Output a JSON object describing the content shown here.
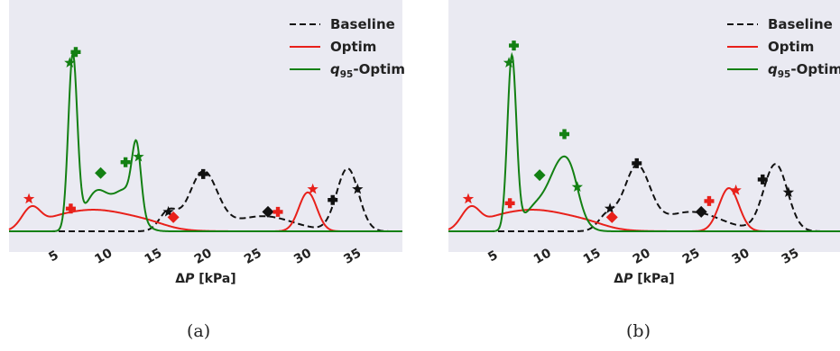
{
  "figure": {
    "captions": [
      "(a)",
      "(b)"
    ]
  },
  "colors": {
    "baseline": "#111111",
    "optim": "#e8201a",
    "q95": "#138013",
    "panel_bg": "#eaeaf2"
  },
  "chart_data": [
    {
      "type": "line",
      "xlabel": "ΔP [kPa]",
      "xticks": [
        5,
        10,
        15,
        20,
        25,
        30,
        35
      ],
      "xlim": [
        0.5,
        40
      ],
      "ylim": [
        0,
        1.0
      ],
      "grid": false,
      "legend": "top-right",
      "series": [
        {
          "name": "Baseline",
          "key": "baseline",
          "style": "dashed",
          "peaks": [
            [
              16.5,
              0.09,
              0.9
            ],
            [
              20.0,
              0.27,
              1.4
            ],
            [
              26.0,
              0.07,
              3.0
            ],
            [
              34.5,
              0.29,
              1.1
            ]
          ],
          "markers": [
            {
              "symbol": "star",
              "x": 16.5,
              "y": 0.09
            },
            {
              "symbol": "plus",
              "x": 20.0,
              "y": 0.265
            },
            {
              "symbol": "diamond",
              "x": 26.5,
              "y": 0.09
            },
            {
              "symbol": "plus",
              "x": 33.0,
              "y": 0.145
            },
            {
              "symbol": "star",
              "x": 35.5,
              "y": 0.195
            }
          ]
        },
        {
          "name": "Optim",
          "key": "optim",
          "style": "solid",
          "base": 0.06,
          "peaks": [
            [
              2.8,
              0.11,
              1.0
            ],
            [
              9.0,
              0.04,
              3.0
            ],
            [
              30.5,
              0.18,
              0.9
            ]
          ],
          "markers": [
            {
              "symbol": "star",
              "x": 2.5,
              "y": 0.15
            },
            {
              "symbol": "plus",
              "x": 6.7,
              "y": 0.105
            },
            {
              "symbol": "diamond",
              "x": 17.0,
              "y": 0.065
            },
            {
              "symbol": "plus",
              "x": 27.5,
              "y": 0.09
            },
            {
              "symbol": "star",
              "x": 31.0,
              "y": 0.195
            }
          ]
        },
        {
          "name": "q95-Optim",
          "key": "q95",
          "style": "solid",
          "peaks": [
            [
              6.9,
              0.8,
              0.45
            ],
            [
              9.3,
              0.18,
              1.2
            ],
            [
              12.2,
              0.18,
              1.2
            ],
            [
              13.3,
              0.3,
              0.45
            ]
          ],
          "markers": [
            {
              "symbol": "star",
              "x": 6.6,
              "y": 0.78
            },
            {
              "symbol": "plus",
              "x": 7.2,
              "y": 0.83
            },
            {
              "symbol": "diamond",
              "x": 9.7,
              "y": 0.27
            },
            {
              "symbol": "plus",
              "x": 12.2,
              "y": 0.32
            },
            {
              "symbol": "star",
              "x": 13.5,
              "y": 0.345
            }
          ]
        }
      ]
    },
    {
      "type": "line",
      "xlabel": "ΔP [kPa]",
      "xticks": [
        5,
        10,
        15,
        20,
        25,
        30,
        35
      ],
      "xlim": [
        0.5,
        40
      ],
      "ylim": [
        0,
        1.0
      ],
      "grid": false,
      "legend": "top-right",
      "series": [
        {
          "name": "Baseline",
          "key": "baseline",
          "style": "dashed",
          "peaks": [
            [
              16.5,
              0.07,
              0.9
            ],
            [
              19.5,
              0.29,
              1.3
            ],
            [
              25.0,
              0.09,
              3.0
            ],
            [
              33.5,
              0.31,
              1.2
            ]
          ],
          "markers": [
            {
              "symbol": "star",
              "x": 16.8,
              "y": 0.105
            },
            {
              "symbol": "plus",
              "x": 19.5,
              "y": 0.315
            },
            {
              "symbol": "diamond",
              "x": 26.0,
              "y": 0.09
            },
            {
              "symbol": "plus",
              "x": 32.2,
              "y": 0.24
            },
            {
              "symbol": "star",
              "x": 34.8,
              "y": 0.18
            }
          ]
        },
        {
          "name": "Optim",
          "key": "optim",
          "style": "solid",
          "base": 0.06,
          "peaks": [
            [
              2.8,
              0.11,
              1.0
            ],
            [
              9.0,
              0.04,
              3.0
            ],
            [
              28.8,
              0.2,
              1.0
            ]
          ],
          "markers": [
            {
              "symbol": "star",
              "x": 2.5,
              "y": 0.15
            },
            {
              "symbol": "plus",
              "x": 6.7,
              "y": 0.13
            },
            {
              "symbol": "diamond",
              "x": 17.0,
              "y": 0.065
            },
            {
              "symbol": "plus",
              "x": 26.8,
              "y": 0.14
            },
            {
              "symbol": "star",
              "x": 29.5,
              "y": 0.19
            }
          ]
        },
        {
          "name": "q95-Optim",
          "key": "q95",
          "style": "solid",
          "peaks": [
            [
              6.9,
              0.8,
              0.45
            ],
            [
              9.2,
              0.1,
              1.2
            ],
            [
              12.0,
              0.32,
              1.3
            ],
            [
              13.0,
              0.05,
              0.7
            ]
          ],
          "markers": [
            {
              "symbol": "star",
              "x": 6.6,
              "y": 0.78
            },
            {
              "symbol": "plus",
              "x": 7.1,
              "y": 0.86
            },
            {
              "symbol": "diamond",
              "x": 9.7,
              "y": 0.26
            },
            {
              "symbol": "plus",
              "x": 12.2,
              "y": 0.45
            },
            {
              "symbol": "star",
              "x": 13.5,
              "y": 0.205
            }
          ]
        }
      ]
    }
  ]
}
